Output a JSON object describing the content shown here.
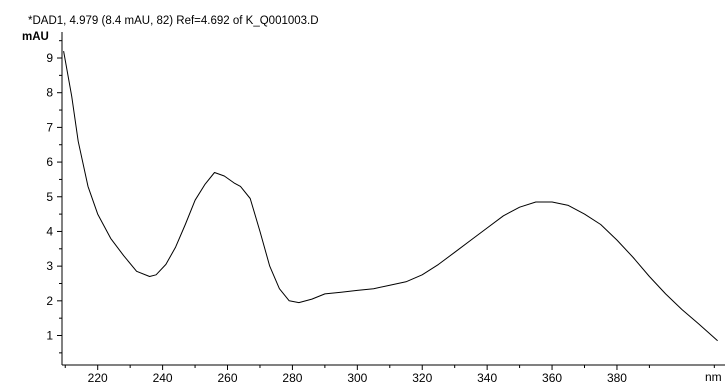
{
  "chart_data": {
    "type": "line",
    "title": "*DAD1, 4.979 (8.4 mAU, 82) Ref=4.692 of K_Q001003.D",
    "ylabel": "mAU",
    "xlabel": "nm",
    "xlim": [
      209,
      425
    ],
    "ylim": [
      0.15,
      9.75
    ],
    "x_ticks": [
      220,
      240,
      260,
      280,
      300,
      320,
      340,
      360,
      380
    ],
    "y_ticks": [
      1,
      2,
      3,
      4,
      5,
      6,
      7,
      8,
      9
    ],
    "grid": false,
    "series": [
      {
        "color": "#000000",
        "points": [
          [
            209.5,
            9.2
          ],
          [
            212,
            7.9
          ],
          [
            214,
            6.6
          ],
          [
            217,
            5.3
          ],
          [
            220,
            4.5
          ],
          [
            224,
            3.8
          ],
          [
            228,
            3.3
          ],
          [
            232,
            2.85
          ],
          [
            236,
            2.7
          ],
          [
            238,
            2.75
          ],
          [
            241,
            3.05
          ],
          [
            244,
            3.55
          ],
          [
            247,
            4.2
          ],
          [
            250,
            4.9
          ],
          [
            253,
            5.35
          ],
          [
            256,
            5.7
          ],
          [
            259,
            5.6
          ],
          [
            262,
            5.4
          ],
          [
            264,
            5.3
          ],
          [
            267,
            4.95
          ],
          [
            270,
            4.0
          ],
          [
            273,
            3.0
          ],
          [
            276,
            2.35
          ],
          [
            279,
            2.0
          ],
          [
            282,
            1.95
          ],
          [
            286,
            2.05
          ],
          [
            290,
            2.2
          ],
          [
            295,
            2.25
          ],
          [
            300,
            2.3
          ],
          [
            305,
            2.35
          ],
          [
            310,
            2.45
          ],
          [
            315,
            2.55
          ],
          [
            320,
            2.75
          ],
          [
            325,
            3.05
          ],
          [
            330,
            3.4
          ],
          [
            335,
            3.75
          ],
          [
            340,
            4.1
          ],
          [
            345,
            4.45
          ],
          [
            350,
            4.7
          ],
          [
            355,
            4.85
          ],
          [
            360,
            4.85
          ],
          [
            365,
            4.75
          ],
          [
            370,
            4.5
          ],
          [
            375,
            4.2
          ],
          [
            380,
            3.75
          ],
          [
            385,
            3.25
          ],
          [
            390,
            2.7
          ],
          [
            395,
            2.2
          ],
          [
            400,
            1.75
          ],
          [
            405,
            1.35
          ],
          [
            408,
            1.1
          ],
          [
            411,
            0.85
          ]
        ]
      }
    ]
  }
}
